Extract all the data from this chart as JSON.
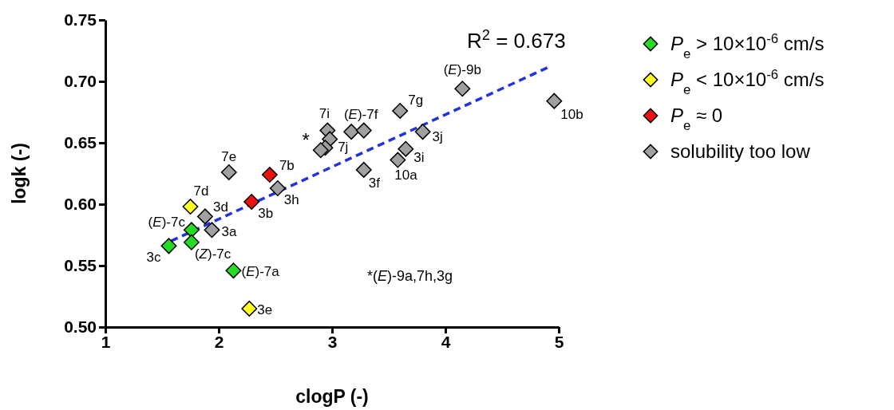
{
  "chart_data": {
    "type": "scatter",
    "xlabel": "clogP (-)",
    "ylabel": "logk (-)",
    "xlim": [
      1,
      5
    ],
    "ylim": [
      0.5,
      0.75
    ],
    "xticks": [
      1,
      2,
      3,
      4,
      5
    ],
    "yticks": [
      {
        "value": 0.5,
        "label": "0.50"
      },
      {
        "value": 0.55,
        "label": "0.55"
      },
      {
        "value": 0.6,
        "label": "0.60"
      },
      {
        "value": 0.65,
        "label": "0.65"
      },
      {
        "value": 0.7,
        "label": "0.70"
      },
      {
        "value": 0.75,
        "label": "0.75"
      }
    ],
    "marker": "diamond",
    "legend": "right",
    "grid": false,
    "series": [
      {
        "name": "P$_{e}$ > 10×10$^{-6}$ cm/s",
        "color": "#22dd22",
        "x": [
          1.56,
          1.76,
          1.76,
          2.13
        ],
        "values": [
          0.566,
          0.579,
          0.569,
          0.546
        ]
      },
      {
        "name": "P$_{e}$ < 10×10$^{-6}$ cm/s",
        "color": "#ffff22",
        "x": [
          1.75,
          2.27
        ],
        "values": [
          0.598,
          0.515
        ]
      },
      {
        "name": "P$_{e}$ ≈ 0",
        "color": "#ee1111",
        "x": [
          2.29,
          2.45
        ],
        "values": [
          0.602,
          0.624
        ]
      },
      {
        "name": "solubility too low",
        "color": "#a0a0a0",
        "x": [
          1.88,
          1.94,
          2.09,
          2.52,
          2.96,
          2.98,
          2.94,
          2.9,
          3.17,
          3.28,
          3.6,
          4.15,
          4.96,
          3.8,
          3.65,
          3.58,
          3.28
        ],
        "values": [
          0.59,
          0.579,
          0.626,
          0.613,
          0.66,
          0.653,
          0.646,
          0.644,
          0.659,
          0.66,
          0.676,
          0.694,
          0.684,
          0.659,
          0.645,
          0.636,
          0.628
        ]
      },
      {
        "type": "line",
        "color": "#2233dd",
        "line_style": "dashed",
        "marker": "none",
        "x": [
          1.58,
          4.92
        ],
        "values": [
          0.57,
          0.712
        ]
      }
    ],
    "annotations": [
      {
        "text": "3c",
        "x": 1.56,
        "y": 0.566
      },
      {
        "text": "(E)-7c",
        "x": 1.76,
        "y": 0.579
      },
      {
        "text": "(Z)-7c",
        "x": 1.76,
        "y": 0.569
      },
      {
        "text": "(E)-7a",
        "x": 2.13,
        "y": 0.546
      },
      {
        "text": "7d",
        "x": 1.75,
        "y": 0.598
      },
      {
        "text": "3e",
        "x": 2.27,
        "y": 0.515
      },
      {
        "text": "3b",
        "x": 2.29,
        "y": 0.602
      },
      {
        "text": "7b",
        "x": 2.45,
        "y": 0.624
      },
      {
        "text": "3d",
        "x": 1.88,
        "y": 0.59
      },
      {
        "text": "3a",
        "x": 1.94,
        "y": 0.579
      },
      {
        "text": "7e",
        "x": 2.09,
        "y": 0.626
      },
      {
        "text": "3h",
        "x": 2.52,
        "y": 0.613
      },
      {
        "text": "7i",
        "x": 2.96,
        "y": 0.66
      },
      {
        "text": "7j",
        "x": 2.98,
        "y": 0.653
      },
      {
        "text": "*",
        "x": 2.9,
        "y": 0.644
      },
      {
        "text": "(E)-7f",
        "x": 3.17,
        "y": 0.659
      },
      {
        "text": "7g",
        "x": 3.6,
        "y": 0.676
      },
      {
        "text": "(E)-9b",
        "x": 4.15,
        "y": 0.694
      },
      {
        "text": "10b",
        "x": 4.96,
        "y": 0.684
      },
      {
        "text": "3j",
        "x": 3.8,
        "y": 0.659
      },
      {
        "text": "3i",
        "x": 3.65,
        "y": 0.645
      },
      {
        "text": "10a",
        "x": 3.58,
        "y": 0.636
      },
      {
        "text": "3f",
        "x": 3.28,
        "y": 0.628
      },
      "R$^{2}$ = 0.673",
      "*(E)-9a,7h,3g"
    ]
  }
}
